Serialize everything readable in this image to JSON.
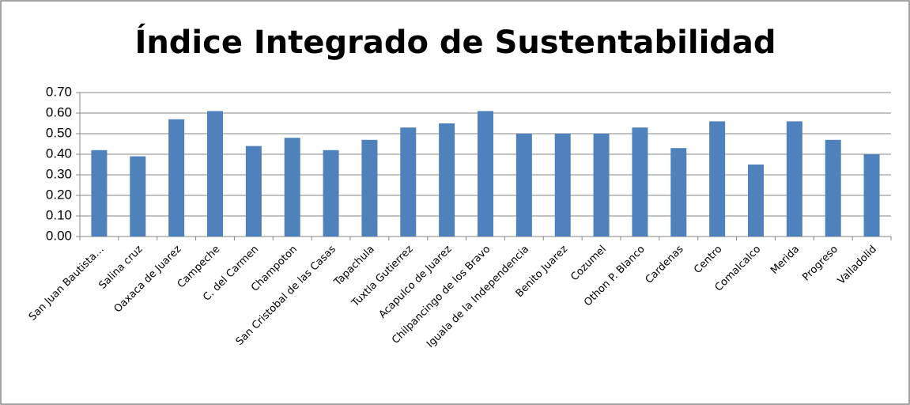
{
  "chart_data": {
    "type": "bar",
    "title": "Índice Integrado de Sustentabilidad",
    "categories": [
      "San Juan Bautista…",
      "Salina cruz",
      "Oaxaca de Juarez",
      "Campeche",
      "C. del Carmen",
      "Champoton",
      "San Cristobal de las Casas",
      "Tapachula",
      "Tuxtla Gutierrez",
      "Acapulco de Juarez",
      "Chilpancingo de los Bravo",
      "Iguala de la Independencia",
      "Benito Juarez",
      "Cozumel",
      "Othon P. Blanco",
      "Cardenas",
      "Centro",
      "Comalcalco",
      "Merida",
      "Progreso",
      "Valladolid"
    ],
    "values": [
      0.42,
      0.39,
      0.57,
      0.61,
      0.44,
      0.48,
      0.42,
      0.47,
      0.53,
      0.55,
      0.61,
      0.5,
      0.5,
      0.5,
      0.53,
      0.43,
      0.56,
      0.35,
      0.56,
      0.47,
      0.4
    ],
    "color": "#4f81bd",
    "ylim": [
      0,
      0.7
    ],
    "yticks": [
      {
        "value": 0,
        "label": "0.00"
      },
      {
        "value": 0.1,
        "label": "0.10"
      },
      {
        "value": 0.2,
        "label": "0.20"
      },
      {
        "value": 0.3,
        "label": "0.30"
      },
      {
        "value": 0.4,
        "label": "0.40"
      },
      {
        "value": 0.5,
        "label": "0.50"
      },
      {
        "value": 0.6,
        "label": "0.60"
      },
      {
        "value": 0.7,
        "label": "0.70"
      }
    ],
    "grid": true
  }
}
